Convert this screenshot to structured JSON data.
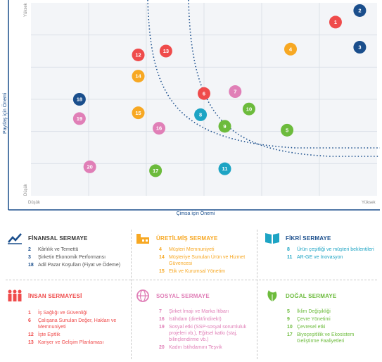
{
  "chart_data": {
    "type": "scatter",
    "xlabel": "Çimsa için Önemi",
    "ylabel": "Paydaş için Önemi",
    "x_low": "Düşük",
    "x_high": "Yüksek",
    "y_low": "Düşük",
    "y_high": "Yüksek",
    "xlim": [
      0,
      10
    ],
    "ylim": [
      0,
      10
    ],
    "grid": true,
    "points": [
      {
        "id": "1",
        "x": 8.8,
        "y": 9.0,
        "color": "#EF4B4B"
      },
      {
        "id": "2",
        "x": 9.5,
        "y": 9.6,
        "color": "#1A4E8C"
      },
      {
        "id": "3",
        "x": 9.5,
        "y": 7.7,
        "color": "#1A4E8C"
      },
      {
        "id": "4",
        "x": 7.5,
        "y": 7.6,
        "color": "#F7A823"
      },
      {
        "id": "5",
        "x": 7.4,
        "y": 3.4,
        "color": "#6CBB3C"
      },
      {
        "id": "6",
        "x": 5.0,
        "y": 5.3,
        "color": "#EF4B4B"
      },
      {
        "id": "7",
        "x": 5.9,
        "y": 5.4,
        "color": "#E07FB7"
      },
      {
        "id": "8",
        "x": 4.9,
        "y": 4.2,
        "color": "#1DA4C4"
      },
      {
        "id": "9",
        "x": 5.6,
        "y": 3.6,
        "color": "#6CBB3C"
      },
      {
        "id": "10",
        "x": 6.3,
        "y": 4.5,
        "color": "#6CBB3C"
      },
      {
        "id": "11",
        "x": 5.6,
        "y": 1.4,
        "color": "#1DA4C4"
      },
      {
        "id": "12",
        "x": 3.1,
        "y": 7.3,
        "color": "#EF4B4B"
      },
      {
        "id": "13",
        "x": 3.9,
        "y": 7.5,
        "color": "#EF4B4B"
      },
      {
        "id": "14",
        "x": 3.1,
        "y": 6.2,
        "color": "#F7A823"
      },
      {
        "id": "15",
        "x": 3.1,
        "y": 4.3,
        "color": "#F7A823"
      },
      {
        "id": "16",
        "x": 3.7,
        "y": 3.5,
        "color": "#E07FB7"
      },
      {
        "id": "17",
        "x": 3.6,
        "y": 1.3,
        "color": "#6CBB3C"
      },
      {
        "id": "18",
        "x": 1.4,
        "y": 5.0,
        "color": "#1A4E8C"
      },
      {
        "id": "19",
        "x": 1.4,
        "y": 4.0,
        "color": "#E07FB7"
      },
      {
        "id": "20",
        "x": 1.7,
        "y": 1.5,
        "color": "#E07FB7"
      }
    ]
  },
  "legend": {
    "finansal": {
      "title": "FİNANSAL SERMAYE",
      "color": "#1A4E8C",
      "icon": "chart-trend-icon",
      "items": [
        {
          "num": "2",
          "label": "Kârlılık ve Temettü"
        },
        {
          "num": "3",
          "label": "Şirketin Ekonomik Performansı"
        },
        {
          "num": "18",
          "label": "Adil Pazar Koşulları (Fiyat ve Ödeme)"
        }
      ]
    },
    "uretilmis": {
      "title": "ÜRETİLMİŞ SERMAYE",
      "color": "#F7A823",
      "icon": "factory-icon",
      "items": [
        {
          "num": "4",
          "label": "Müşteri Memnuniyeti"
        },
        {
          "num": "14",
          "label": "Müşteriye Sunulan Ürün ve Hizmet Güvencesi"
        },
        {
          "num": "15",
          "label": "Etik ve Kurumsal Yönetim"
        }
      ]
    },
    "fikri": {
      "title": "FİKRİ SERMAYE",
      "color": "#1DA4C4",
      "icon": "book-icon",
      "items": [
        {
          "num": "8",
          "label": "Ürün çeşitliği ve müşteri beklentileri"
        },
        {
          "num": "11",
          "label": "AR-GE ve İnovasyon"
        }
      ]
    },
    "insan": {
      "title": "İNSAN SERMAYESİ",
      "color": "#EF4B4B",
      "icon": "people-icon",
      "items": [
        {
          "num": "1",
          "label": "İş Sağlığı ve Güvenliği"
        },
        {
          "num": "6",
          "label": "Çalışana Sunulan Değer, Hakları ve Memnuniyeti"
        },
        {
          "num": "12",
          "label": "İşte Eşitlik"
        },
        {
          "num": "13",
          "label": "Kariyer ve Gelişim Planlaması"
        }
      ]
    },
    "sosyal": {
      "title": "SOSYAL SERMAYE",
      "color": "#E07FB7",
      "icon": "globe-icon",
      "items": [
        {
          "num": "7",
          "label": "Şirket İmajı ve Marka İtibarı"
        },
        {
          "num": "16",
          "label": "İstihdam (direkt/indirekt)"
        },
        {
          "num": "19",
          "label": "Sosyal etki (SSP-sosyal sorumluluk projeleri vb.), Eğitsel katkı (staj, bilinçlendirme vb.)"
        },
        {
          "num": "20",
          "label": "Kadın İstihdamını Teşvik"
        }
      ]
    },
    "dogal": {
      "title": "DOĞAL SERMAYE",
      "color": "#6CBB3C",
      "icon": "leaf-icon",
      "items": [
        {
          "num": "5",
          "label": "İklim Değişikliği"
        },
        {
          "num": "9",
          "label": "Çevre Yönetimi"
        },
        {
          "num": "10",
          "label": "Çevresel etki"
        },
        {
          "num": "17",
          "label": "Biyoçeşitlilik ve Ekosistem Geliştirme Faaliyetleri"
        }
      ]
    }
  }
}
